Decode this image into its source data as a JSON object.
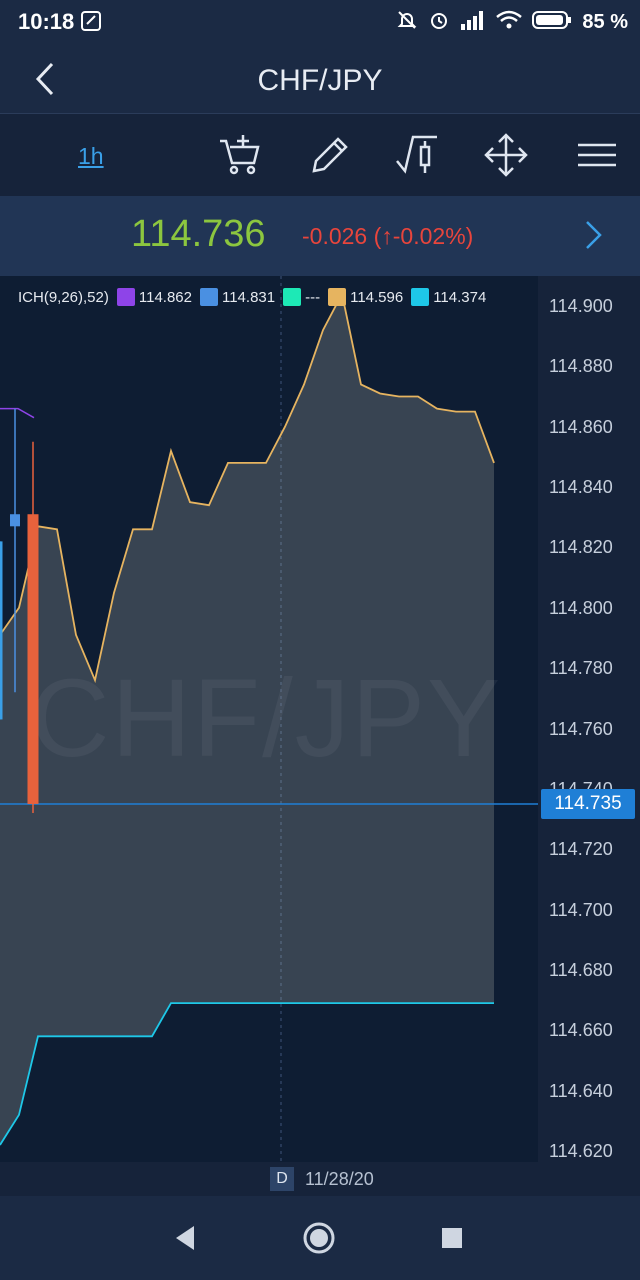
{
  "status": {
    "time": "10:18",
    "battery": "85 %"
  },
  "header": {
    "title": "CHF/JPY",
    "back_icon": "back-arrow-icon"
  },
  "toolbar": {
    "timeframe": "1h",
    "tools": [
      "add-to-cart-icon",
      "pencil-icon",
      "indicator-chart-icon",
      "move-arrows-icon",
      "menu-icon"
    ]
  },
  "quote": {
    "price": "114.736",
    "change": "-0.026 (↑-0.02%)",
    "next_icon": "chevron-right-icon"
  },
  "legend": {
    "label": "ICH(9,26),52)",
    "items": [
      {
        "color": "#8e44e8",
        "value": "114.862"
      },
      {
        "color": "#4a90e2",
        "value": "114.831"
      },
      {
        "color": "#1de9b6",
        "value": "---"
      },
      {
        "color": "#e6b460",
        "value": "114.596"
      },
      {
        "color": "#1ec8e8",
        "value": "114.374"
      }
    ]
  },
  "watermark": "CHF/JPY",
  "axis": {
    "labels": [
      "114.900",
      "114.880",
      "114.860",
      "114.840",
      "114.820",
      "114.800",
      "114.780",
      "114.760",
      "114.740",
      "114.720",
      "114.700",
      "114.680",
      "114.660",
      "114.640",
      "114.620"
    ],
    "current_price": "114.735"
  },
  "date_bar": {
    "badge": "D",
    "date": "11/28/20"
  },
  "chart_data": {
    "type": "line",
    "ylim": [
      114.615,
      114.91
    ],
    "current_price": 114.735,
    "series": [
      {
        "color": "#e6b460",
        "values": [
          114.791,
          114.8,
          114.827,
          114.826,
          114.791,
          114.776,
          114.805,
          114.826,
          114.826,
          114.852,
          114.835,
          114.834,
          114.848,
          114.848,
          114.848,
          114.86,
          114.874,
          114.892,
          114.904,
          114.874,
          114.871,
          114.87,
          114.87,
          114.866,
          114.865,
          114.865,
          114.848
        ]
      },
      {
        "color": "#1ec8e8",
        "values": [
          114.622,
          114.632,
          114.658,
          114.658,
          114.658,
          114.658,
          114.658,
          114.658,
          114.658,
          114.669,
          114.669,
          114.669,
          114.669,
          114.669,
          114.669,
          114.669,
          114.669,
          114.669,
          114.669,
          114.669,
          114.669,
          114.669,
          114.669,
          114.669,
          114.669,
          114.669,
          114.669
        ]
      }
    ],
    "candles": [
      {
        "open": 114.822,
        "close": 114.763,
        "high": 114.822,
        "low": 114.763,
        "color": "#3aa0e8"
      },
      {
        "open": 114.831,
        "close": 114.827,
        "high": 114.866,
        "low": 114.772,
        "color": "#4a90e2"
      },
      {
        "open": 114.831,
        "close": 114.735,
        "high": 114.855,
        "low": 114.732,
        "color": "#e8623c"
      }
    ]
  }
}
